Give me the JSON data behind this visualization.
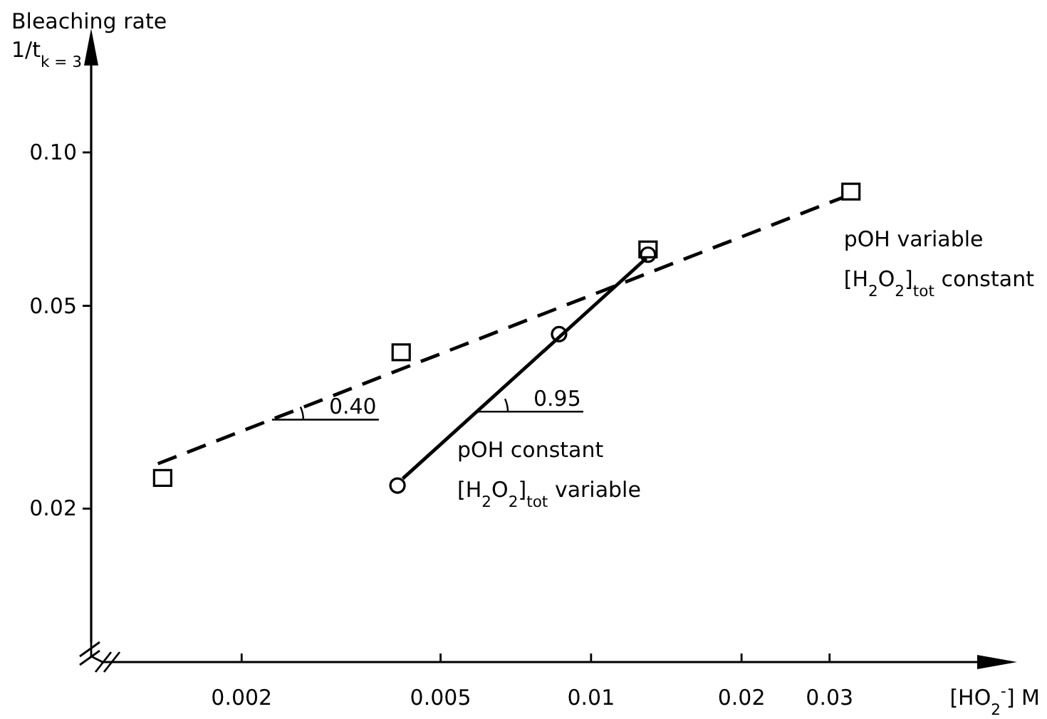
{
  "chart_data": {
    "type": "scatter",
    "ylabel": "Bleaching rate\n1/t$_{k = 3}$",
    "xlabel": "[HO$_{2}$$^{-}$] M",
    "log": "xy",
    "grid": false,
    "xlim": [
      0.001,
      0.06
    ],
    "xticks": [
      0.002,
      0.005,
      0.01,
      0.02,
      0.03
    ],
    "ylim": [
      0.01,
      0.15
    ],
    "yticks": [
      0.02,
      0.05,
      {
        "value": 0.1,
        "label": "0.10"
      }
    ],
    "series": [
      {
        "marker": "square",
        "color": "#000000",
        "x": [
          0.00139,
          0.00417,
          0.013,
          0.0331
        ],
        "values": [
          0.0229,
          0.0404,
          0.0643,
          0.0835
        ]
      },
      {
        "marker": "circle",
        "color": "#000000",
        "x": [
          0.0041,
          0.00863,
          0.013
        ],
        "values": [
          0.0222,
          0.044,
          0.063
        ]
      },
      {
        "type": "line",
        "line_style": "dashed",
        "marker": "none",
        "color": "#000000",
        "x": [
          0.00136,
          0.0318
        ],
        "values": [
          0.0245,
          0.0815
        ]
      },
      {
        "type": "line",
        "line_style": "solid",
        "marker": "none",
        "color": "#000000",
        "x": [
          0.0042,
          0.0129
        ],
        "values": [
          0.0229,
          0.062
        ]
      }
    ],
    "annotations": [
      {
        "text": "0.40",
        "x": 0.0023,
        "y": 0.0299
      },
      {
        "text": "0.95",
        "x": 0.0059,
        "y": 0.031
      },
      "pOH variable\n[H$_{2}$O$_{2}$]$_{tot}$ constant",
      "pOH constant\n[H$_{2}$O$_{2}$]$_{tot}$ variable"
    ]
  }
}
